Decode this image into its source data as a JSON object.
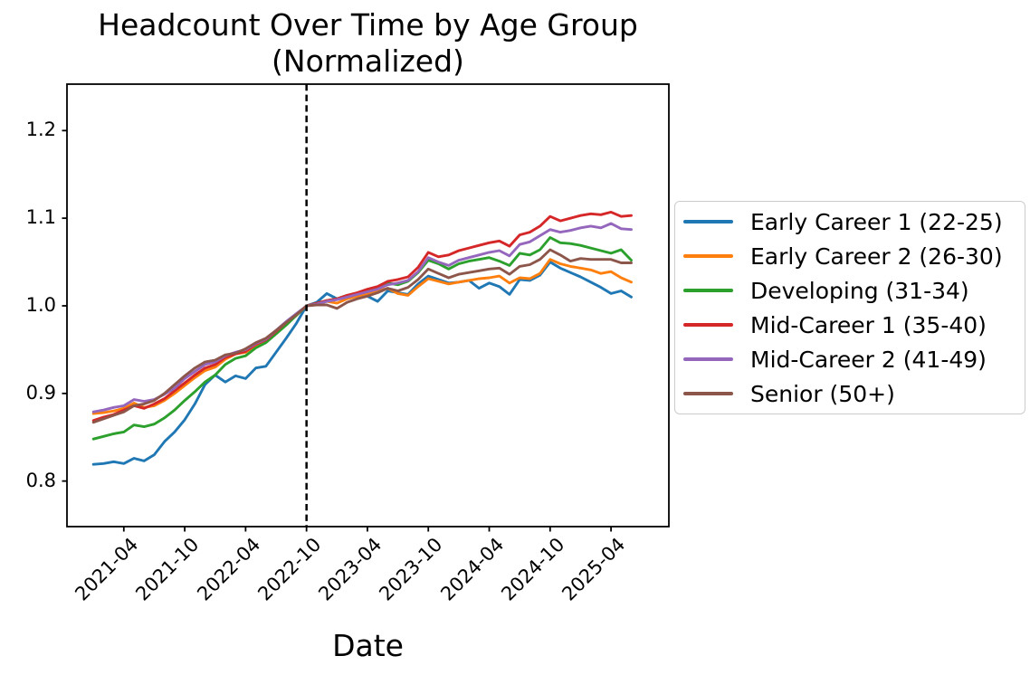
{
  "title": {
    "line1": "Headcount Over Time by Age Group",
    "line2": "(Normalized)"
  },
  "axes": {
    "x_label": "Date",
    "x_tick_labels": [
      "2021-04",
      "2021-10",
      "2022-04",
      "2022-10",
      "2023-04",
      "2023-10",
      "2024-04",
      "2024-10",
      "2025-04"
    ],
    "y_tick_labels": [
      "0.8",
      "0.9",
      "1.0",
      "1.1",
      "1.2"
    ]
  },
  "colors": {
    "axis": "#000000",
    "reference_line": "#000000",
    "legend_border": "#cccccc"
  },
  "chart_data": {
    "type": "line",
    "title": "Headcount Over Time by Age Group (Normalized)",
    "xlabel": "Date",
    "ylabel": "",
    "grid": false,
    "legend_position": "center right, outside axes",
    "ylim": [
      0.748,
      1.253
    ],
    "xlim_index": [
      -2.6,
      56.7
    ],
    "y_ticks": [
      0.8,
      0.9,
      1.0,
      1.1,
      1.2
    ],
    "x_ticks": [
      "2021-04",
      "2021-10",
      "2022-04",
      "2022-10",
      "2023-04",
      "2023-10",
      "2024-04",
      "2024-10",
      "2025-04"
    ],
    "reference_line": {
      "x": "2022-10",
      "style": "dashed",
      "color": "#000000",
      "note": "normalization point, all series = 1.0"
    },
    "x": [
      "2021-01",
      "2021-02",
      "2021-03",
      "2021-04",
      "2021-05",
      "2021-06",
      "2021-07",
      "2021-08",
      "2021-09",
      "2021-10",
      "2021-11",
      "2021-12",
      "2022-01",
      "2022-02",
      "2022-03",
      "2022-04",
      "2022-05",
      "2022-06",
      "2022-07",
      "2022-08",
      "2022-09",
      "2022-10",
      "2022-11",
      "2022-12",
      "2023-01",
      "2023-02",
      "2023-03",
      "2023-04",
      "2023-05",
      "2023-06",
      "2023-07",
      "2023-08",
      "2023-09",
      "2023-10",
      "2023-11",
      "2023-12",
      "2024-01",
      "2024-02",
      "2024-03",
      "2024-04",
      "2024-05",
      "2024-06",
      "2024-07",
      "2024-08",
      "2024-09",
      "2024-10",
      "2024-11",
      "2024-12",
      "2025-01",
      "2025-02",
      "2025-03",
      "2025-04",
      "2025-05",
      "2025-06"
    ],
    "series": [
      {
        "name": "Early Career 1 (22-25)",
        "color": "#1f77b4",
        "values": [
          0.819,
          0.82,
          0.822,
          0.82,
          0.826,
          0.823,
          0.83,
          0.845,
          0.856,
          0.87,
          0.888,
          0.91,
          0.921,
          0.913,
          0.92,
          0.917,
          0.929,
          0.931,
          0.947,
          0.963,
          0.98,
          1.0,
          1.004,
          1.014,
          1.008,
          1.009,
          1.013,
          1.011,
          1.005,
          1.017,
          1.015,
          1.013,
          1.025,
          1.034,
          1.03,
          1.026,
          1.027,
          1.029,
          1.02,
          1.026,
          1.022,
          1.013,
          1.03,
          1.029,
          1.035,
          1.05,
          1.043,
          1.038,
          1.033,
          1.027,
          1.021,
          1.014,
          1.017,
          1.01
        ]
      },
      {
        "name": "Early Career 2 (26-30)",
        "color": "#ff7f0e",
        "values": [
          0.877,
          0.878,
          0.88,
          0.883,
          0.889,
          0.884,
          0.886,
          0.892,
          0.9,
          0.909,
          0.918,
          0.926,
          0.93,
          0.939,
          0.945,
          0.947,
          0.955,
          0.96,
          0.97,
          0.98,
          0.989,
          1.0,
          1.002,
          1.005,
          1.003,
          1.008,
          1.011,
          1.014,
          1.017,
          1.02,
          1.014,
          1.012,
          1.022,
          1.031,
          1.028,
          1.025,
          1.027,
          1.029,
          1.031,
          1.032,
          1.034,
          1.026,
          1.032,
          1.031,
          1.037,
          1.053,
          1.048,
          1.045,
          1.043,
          1.041,
          1.037,
          1.039,
          1.032,
          1.027
        ]
      },
      {
        "name": "Developing (31-34)",
        "color": "#2ca02c",
        "values": [
          0.848,
          0.851,
          0.854,
          0.856,
          0.864,
          0.862,
          0.865,
          0.872,
          0.881,
          0.892,
          0.902,
          0.913,
          0.921,
          0.933,
          0.94,
          0.943,
          0.952,
          0.958,
          0.968,
          0.978,
          0.989,
          1.0,
          1.003,
          1.006,
          1.008,
          1.012,
          1.014,
          1.017,
          1.02,
          1.026,
          1.024,
          1.028,
          1.038,
          1.052,
          1.048,
          1.042,
          1.048,
          1.051,
          1.053,
          1.055,
          1.051,
          1.046,
          1.06,
          1.058,
          1.064,
          1.078,
          1.072,
          1.071,
          1.069,
          1.066,
          1.063,
          1.06,
          1.064,
          1.052
        ]
      },
      {
        "name": "Mid-Career 1 (35-40)",
        "color": "#d62728",
        "values": [
          0.869,
          0.873,
          0.876,
          0.881,
          0.886,
          0.883,
          0.888,
          0.894,
          0.903,
          0.912,
          0.921,
          0.929,
          0.933,
          0.941,
          0.945,
          0.948,
          0.956,
          0.961,
          0.971,
          0.981,
          0.99,
          1.0,
          1.003,
          1.006,
          1.008,
          1.012,
          1.015,
          1.019,
          1.022,
          1.028,
          1.03,
          1.033,
          1.044,
          1.061,
          1.056,
          1.058,
          1.063,
          1.066,
          1.069,
          1.072,
          1.074,
          1.068,
          1.081,
          1.084,
          1.091,
          1.102,
          1.097,
          1.1,
          1.103,
          1.105,
          1.104,
          1.107,
          1.102,
          1.103
        ]
      },
      {
        "name": "Mid-Career 2 (41-49)",
        "color": "#9467bd",
        "values": [
          0.879,
          0.881,
          0.884,
          0.886,
          0.893,
          0.891,
          0.893,
          0.899,
          0.906,
          0.917,
          0.925,
          0.933,
          0.936,
          0.943,
          0.947,
          0.95,
          0.957,
          0.962,
          0.972,
          0.982,
          0.991,
          1.0,
          1.002,
          1.005,
          1.007,
          1.01,
          1.013,
          1.016,
          1.019,
          1.024,
          1.026,
          1.029,
          1.039,
          1.055,
          1.05,
          1.046,
          1.052,
          1.055,
          1.058,
          1.061,
          1.063,
          1.057,
          1.07,
          1.073,
          1.08,
          1.087,
          1.084,
          1.086,
          1.089,
          1.091,
          1.089,
          1.094,
          1.088,
          1.087
        ]
      },
      {
        "name": "Senior (50+)",
        "color": "#8c564b",
        "values": [
          0.867,
          0.871,
          0.875,
          0.879,
          0.886,
          0.888,
          0.892,
          0.9,
          0.91,
          0.92,
          0.929,
          0.936,
          0.938,
          0.944,
          0.946,
          0.951,
          0.958,
          0.963,
          0.972,
          0.981,
          0.99,
          1.0,
          1.001,
          1.001,
          0.997,
          1.004,
          1.008,
          1.011,
          1.015,
          1.02,
          1.017,
          1.021,
          1.03,
          1.042,
          1.037,
          1.032,
          1.036,
          1.038,
          1.04,
          1.042,
          1.043,
          1.036,
          1.045,
          1.047,
          1.053,
          1.064,
          1.058,
          1.051,
          1.054,
          1.053,
          1.053,
          1.053,
          1.049,
          1.049
        ]
      }
    ]
  }
}
